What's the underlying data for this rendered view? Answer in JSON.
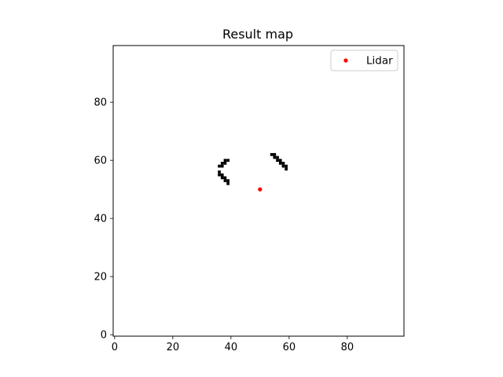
{
  "chart_data": {
    "type": "heatmap",
    "title": "Result map",
    "xlabel": "",
    "ylabel": "",
    "xlim": [
      -0.5,
      99.5
    ],
    "ylim": [
      99.5,
      -0.5
    ],
    "x_ticks": [
      0,
      20,
      40,
      60,
      80
    ],
    "y_ticks": [
      0,
      20,
      40,
      60,
      80
    ],
    "grid": false,
    "occupied_cells": [
      [
        39,
        52
      ],
      [
        38,
        53
      ],
      [
        39,
        53
      ],
      [
        37,
        54
      ],
      [
        38,
        54
      ],
      [
        36,
        55
      ],
      [
        37,
        55
      ],
      [
        36,
        56
      ],
      [
        36,
        58
      ],
      [
        37,
        58
      ],
      [
        37,
        59
      ],
      [
        38,
        59
      ],
      [
        38,
        60
      ],
      [
        39,
        60
      ],
      [
        59,
        57
      ],
      [
        58,
        58
      ],
      [
        59,
        58
      ],
      [
        57,
        59
      ],
      [
        58,
        59
      ],
      [
        56,
        60
      ],
      [
        57,
        60
      ],
      [
        55,
        61
      ],
      [
        56,
        61
      ],
      [
        54,
        62
      ],
      [
        55,
        62
      ]
    ],
    "occupied_color": "#000000",
    "free_color": "#ffffff",
    "series": [
      {
        "name": "Lidar",
        "type": "scatter",
        "color": "#ff0000",
        "points": [
          [
            50,
            50
          ]
        ]
      }
    ],
    "legend": {
      "placement": "top-right"
    }
  }
}
